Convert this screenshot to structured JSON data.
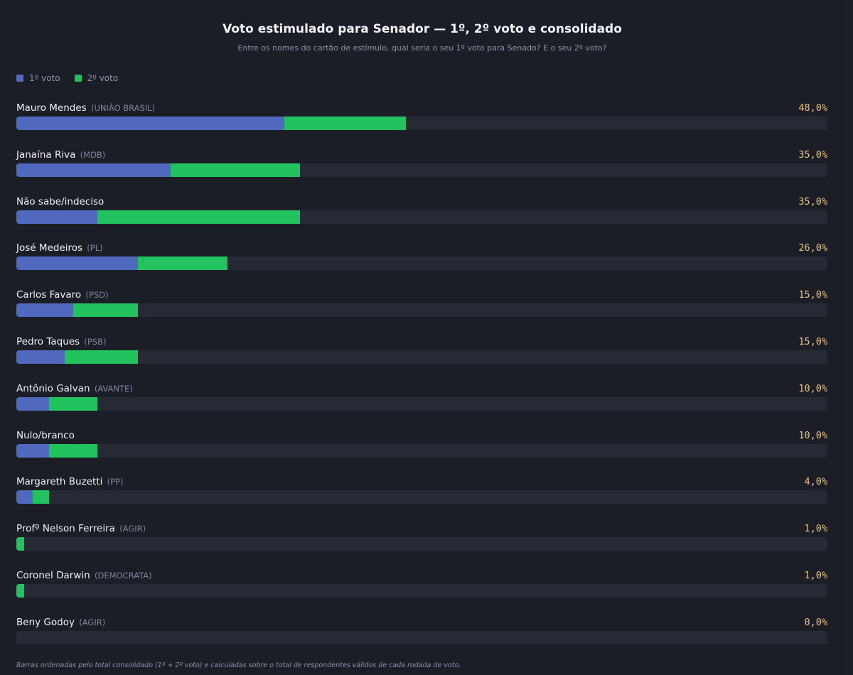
{
  "chart_data": {
    "type": "bar",
    "orientation": "horizontal",
    "stacked": true,
    "title": "Voto estimulado para Senador — 1º, 2º voto e consolidado",
    "subtitle": "Entre os nomes do cartão de estímulo, qual seria o seu 1º voto para Senado? E o seu 2º voto?",
    "legend": [
      {
        "name": "1º voto",
        "color": "#5068bd"
      },
      {
        "name": "2º voto",
        "color": "#22c35e"
      }
    ],
    "legend_placement": "top-left",
    "xlim": [
      0,
      100
    ],
    "rows": [
      {
        "name": "Mauro Mendes",
        "party": "(UNIÃO BRASIL)",
        "first": 33,
        "second": 15,
        "total_label": "48,0%"
      },
      {
        "name": "Janaína Riva",
        "party": "(MDB)",
        "first": 19,
        "second": 16,
        "total_label": "35,0%"
      },
      {
        "name": "Não sabe/indeciso",
        "party": "",
        "first": 10,
        "second": 25,
        "total_label": "35,0%"
      },
      {
        "name": "José Medeiros",
        "party": "(PL)",
        "first": 15,
        "second": 11,
        "total_label": "26,0%"
      },
      {
        "name": "Carlos Favaro",
        "party": "(PSD)",
        "first": 7,
        "second": 8,
        "total_label": "15,0%"
      },
      {
        "name": "Pedro Taques",
        "party": "(PSB)",
        "first": 6,
        "second": 9,
        "total_label": "15,0%"
      },
      {
        "name": "Antônio Galvan",
        "party": "(AVANTE)",
        "first": 4,
        "second": 6,
        "total_label": "10,0%"
      },
      {
        "name": "Nulo/branco",
        "party": "",
        "first": 4,
        "second": 6,
        "total_label": "10,0%"
      },
      {
        "name": "Margareth Buzetti",
        "party": "(PP)",
        "first": 2,
        "second": 2,
        "total_label": "4,0%"
      },
      {
        "name": "Profº Nelson Ferreira",
        "party": "(AGIR)",
        "first": 0,
        "second": 1,
        "total_label": "1,0%"
      },
      {
        "name": "Coronel Darwin",
        "party": "(DEMOCRATA)",
        "first": 0,
        "second": 1,
        "total_label": "1,0%"
      },
      {
        "name": "Beny Godoy",
        "party": "(AGIR)",
        "first": 0,
        "second": 0,
        "total_label": "0,0%"
      }
    ],
    "footnote": "Barras ordenadas pelo total consolidado (1º + 2º voto) e calculadas sobre o total de respondentes válidos de cada rodada de voto."
  }
}
